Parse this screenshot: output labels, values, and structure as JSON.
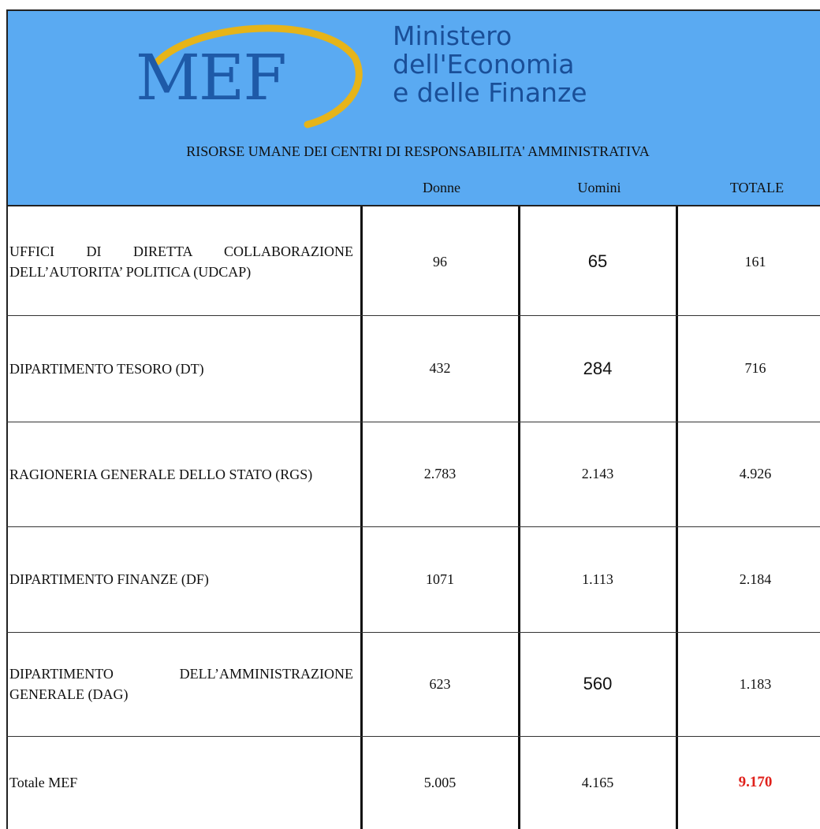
{
  "header": {
    "logo": "MEF",
    "ministry": [
      "Ministero",
      "dell'Economia",
      "e delle Finanze"
    ],
    "subtitle": "RISORSE UMANE DEI CENTRI DI RESPONSABILITA' AMMINISTRATIVA"
  },
  "table": {
    "columns": [
      "Donne",
      "Uomini",
      "TOTALE"
    ],
    "rows": [
      [
        "UFFICI DI DIRETTA COLLABORAZIONE DELL’AUTORITA’ POLITICA (UDCAP)",
        "96",
        "65",
        "161"
      ],
      [
        "DIPARTIMENTO TESORO (DT)",
        "432",
        "284",
        "716"
      ],
      [
        "RAGIONERIA GENERALE DELLO STATO (RGS)",
        "2.783",
        "2.143",
        "4.926"
      ],
      [
        "DIPARTIMENTO FINANZE (DF)",
        "1071",
        "1.113",
        "2.184"
      ],
      [
        "DIPARTIMENTO DELL’AMMINISTRAZIONE GENERALE (DAG)",
        "623",
        "560",
        "1.183"
      ],
      [
        "Totale MEF",
        "5.005",
        "4.165",
        "9.170"
      ]
    ]
  }
}
